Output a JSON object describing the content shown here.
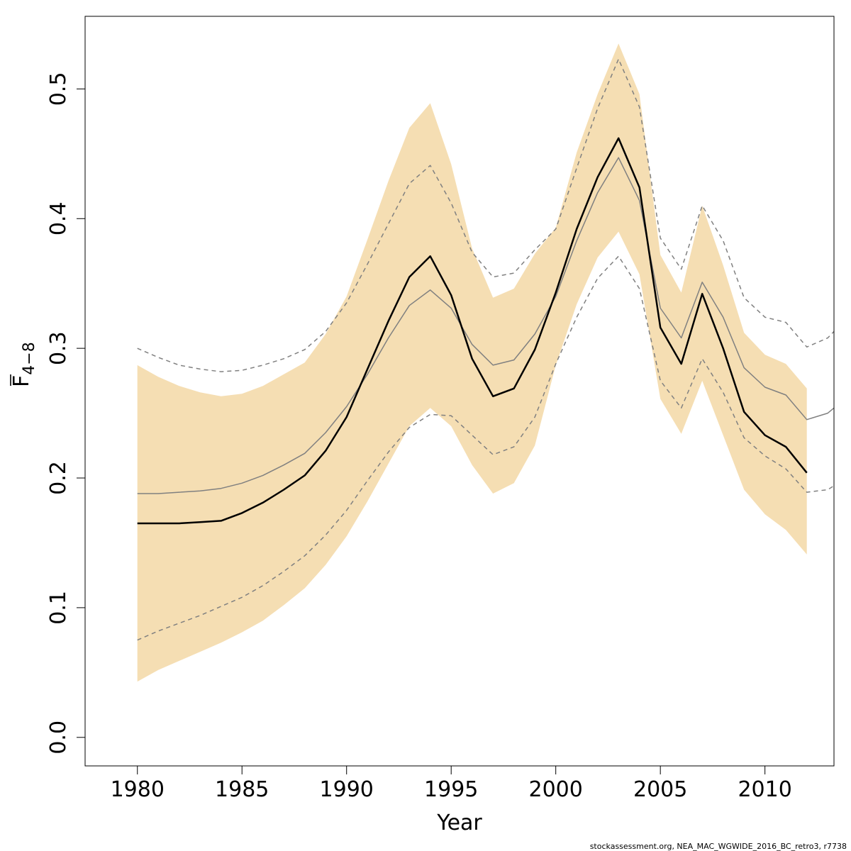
{
  "chart_data": {
    "type": "line",
    "xlabel": "Year",
    "ylabel": "F",
    "ylabel_subscript": "4−8",
    "xlim": [
      1977.5,
      2013.3
    ],
    "ylim": [
      -0.022,
      0.556
    ],
    "x_ticks": [
      1980,
      1985,
      1990,
      1995,
      2000,
      2005,
      2010
    ],
    "x_tick_labels": [
      "1980",
      "1985",
      "1990",
      "1995",
      "2000",
      "2005",
      "2010"
    ],
    "y_ticks": [
      0.0,
      0.1,
      0.2,
      0.3,
      0.4,
      0.5
    ],
    "y_tick_labels": [
      "0.0",
      "0.1",
      "0.2",
      "0.3",
      "0.4",
      "0.5"
    ],
    "grid": false,
    "band_color": "#F5DEB3",
    "estimate_color": "#000000",
    "retro_color": "#808080",
    "footer": "stockassessment.org, NEA_MAC_WGWIDE_2016_BC_retro3, r7738",
    "band": {
      "x": [
        1980,
        1981,
        1982,
        1983,
        1984,
        1985,
        1986,
        1987,
        1988,
        1989,
        1990,
        1991,
        1992,
        1993,
        1994,
        1995,
        1996,
        1997,
        1998,
        1999,
        2000,
        2001,
        2002,
        2003,
        2004,
        2005,
        2006,
        2007,
        2008,
        2009,
        2010,
        2011,
        2012
      ],
      "lower": [
        0.043,
        0.052,
        0.059,
        0.066,
        0.073,
        0.081,
        0.09,
        0.102,
        0.115,
        0.133,
        0.155,
        0.182,
        0.211,
        0.24,
        0.254,
        0.24,
        0.21,
        0.188,
        0.196,
        0.225,
        0.287,
        0.334,
        0.37,
        0.39,
        0.357,
        0.261,
        0.234,
        0.275,
        0.233,
        0.191,
        0.172,
        0.16,
        0.141
      ],
      "upper": [
        0.287,
        0.278,
        0.271,
        0.266,
        0.263,
        0.265,
        0.271,
        0.28,
        0.289,
        0.311,
        0.34,
        0.384,
        0.429,
        0.47,
        0.489,
        0.442,
        0.377,
        0.339,
        0.346,
        0.373,
        0.393,
        0.451,
        0.496,
        0.535,
        0.496,
        0.372,
        0.343,
        0.41,
        0.364,
        0.312,
        0.295,
        0.288,
        0.269
      ]
    },
    "series": [
      {
        "role": "estimate",
        "x": [
          1980,
          1981,
          1982,
          1983,
          1984,
          1985,
          1986,
          1987,
          1988,
          1989,
          1990,
          1991,
          1992,
          1993,
          1994,
          1995,
          1996,
          1997,
          1998,
          1999,
          2000,
          2001,
          2002,
          2003,
          2004,
          2005,
          2006,
          2007,
          2008,
          2009,
          2010,
          2011,
          2012
        ],
        "values": [
          0.165,
          0.165,
          0.165,
          0.166,
          0.167,
          0.173,
          0.181,
          0.191,
          0.202,
          0.221,
          0.247,
          0.284,
          0.321,
          0.355,
          0.371,
          0.341,
          0.292,
          0.263,
          0.269,
          0.299,
          0.343,
          0.392,
          0.432,
          0.462,
          0.424,
          0.316,
          0.288,
          0.342,
          0.3,
          0.251,
          0.233,
          0.224,
          0.204
        ]
      },
      {
        "role": "retro-mean",
        "x": [
          1980,
          1981,
          1982,
          1983,
          1984,
          1985,
          1986,
          1987,
          1988,
          1989,
          1990,
          1991,
          1992,
          1993,
          1994,
          1995,
          1996,
          1997,
          1998,
          1999,
          2000,
          2001,
          2002,
          2003,
          2004,
          2005,
          2006,
          2007,
          2008,
          2009,
          2010,
          2011,
          2012,
          2013,
          2013.3
        ],
        "values": [
          0.188,
          0.188,
          0.189,
          0.19,
          0.192,
          0.196,
          0.202,
          0.21,
          0.219,
          0.235,
          0.255,
          0.28,
          0.308,
          0.333,
          0.345,
          0.331,
          0.303,
          0.287,
          0.291,
          0.311,
          0.34,
          0.383,
          0.42,
          0.447,
          0.414,
          0.331,
          0.308,
          0.351,
          0.324,
          0.285,
          0.27,
          0.264,
          0.245,
          0.25,
          0.254
        ]
      },
      {
        "role": "retro-upper",
        "x": [
          1980,
          1981,
          1982,
          1983,
          1984,
          1985,
          1986,
          1987,
          1988,
          1989,
          1990,
          1991,
          1992,
          1993,
          1994,
          1995,
          1996,
          1997,
          1998,
          1999,
          2000,
          2001,
          2002,
          2003,
          2004,
          2005,
          2006,
          2007,
          2008,
          2009,
          2010,
          2011,
          2012,
          2013,
          2013.3
        ],
        "values": [
          0.3,
          0.293,
          0.287,
          0.284,
          0.282,
          0.283,
          0.287,
          0.292,
          0.299,
          0.313,
          0.335,
          0.365,
          0.396,
          0.427,
          0.441,
          0.412,
          0.374,
          0.355,
          0.358,
          0.376,
          0.392,
          0.439,
          0.485,
          0.523,
          0.486,
          0.385,
          0.361,
          0.41,
          0.383,
          0.339,
          0.324,
          0.32,
          0.301,
          0.308,
          0.313
        ]
      },
      {
        "role": "retro-lower",
        "x": [
          1980,
          1981,
          1982,
          1983,
          1984,
          1985,
          1986,
          1987,
          1988,
          1989,
          1990,
          1991,
          1992,
          1993,
          1994,
          1995,
          1996,
          1997,
          1998,
          1999,
          2000,
          2001,
          2002,
          2003,
          2004,
          2005,
          2006,
          2007,
          2008,
          2009,
          2010,
          2011,
          2012,
          2013,
          2013.3
        ],
        "values": [
          0.075,
          0.082,
          0.088,
          0.094,
          0.101,
          0.108,
          0.117,
          0.128,
          0.14,
          0.156,
          0.175,
          0.198,
          0.22,
          0.239,
          0.249,
          0.248,
          0.233,
          0.218,
          0.224,
          0.247,
          0.288,
          0.324,
          0.354,
          0.371,
          0.346,
          0.275,
          0.254,
          0.292,
          0.266,
          0.231,
          0.217,
          0.207,
          0.189,
          0.191,
          0.194
        ]
      }
    ]
  }
}
